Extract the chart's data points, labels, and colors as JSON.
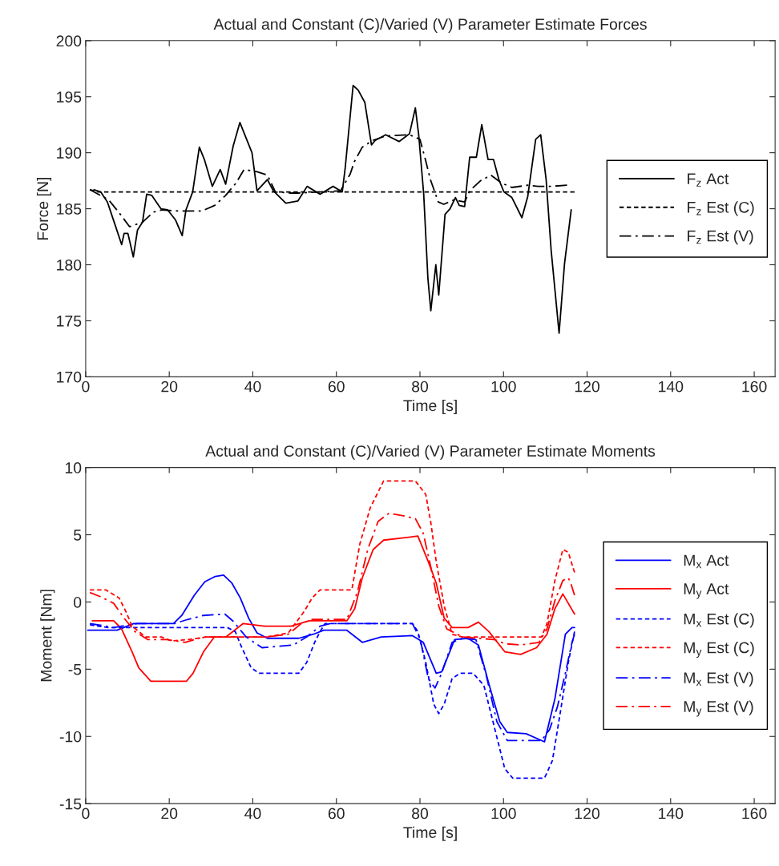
{
  "chart_data": [
    {
      "type": "line",
      "title": "Actual and Constant (C)/Varied (V) Parameter Estimate Forces",
      "xlabel": "Time [s]",
      "ylabel": "Force [N]",
      "xlim": [
        0,
        165
      ],
      "xticks": [
        0,
        20,
        40,
        60,
        80,
        100,
        120,
        140,
        160
      ],
      "ylim": [
        170,
        200
      ],
      "yticks": [
        170,
        175,
        180,
        185,
        190,
        195,
        200
      ],
      "grid": false,
      "legend": "right",
      "series": [
        {
          "name": "F$_{z}$ Act",
          "color": "#000000",
          "line_style": "solid",
          "x": [
            2.0,
            3.6,
            5.2,
            7.0,
            8.6,
            9.2,
            10.1,
            11.4,
            12.4,
            13.6,
            14.6,
            15.8,
            18.0,
            19.6,
            21.5,
            23.1,
            24.0,
            25.6,
            27.2,
            28.4,
            30.3,
            32.2,
            33.5,
            35.3,
            36.9,
            39.8,
            41.0,
            43.5,
            44.9,
            47.9,
            50.8,
            53.0,
            56.1,
            59.2,
            61.4,
            62.1,
            64.0,
            65.2,
            66.8,
            68.4,
            69.3,
            71.8,
            75.0,
            77.5,
            78.9,
            79.7,
            80.9,
            81.9,
            82.6,
            83.8,
            84.5,
            86.0,
            87.2,
            88.5,
            89.4,
            90.7,
            91.9,
            93.5,
            94.8,
            96.3,
            97.6,
            98.9,
            100.1,
            102.0,
            104.4,
            105.8,
            107.7,
            108.9,
            110.2,
            111.4,
            113.3,
            114.6,
            116.2
          ],
          "values": [
            186.7,
            186.5,
            185.6,
            183.6,
            181.8,
            182.8,
            182.8,
            180.7,
            183.1,
            183.8,
            186.3,
            186.2,
            185.0,
            184.9,
            184.0,
            182.6,
            184.9,
            186.5,
            190.5,
            189.4,
            187.0,
            188.5,
            187.2,
            190.6,
            192.7,
            190.0,
            186.6,
            187.6,
            186.6,
            185.5,
            185.7,
            187.0,
            186.3,
            187.0,
            186.5,
            188.6,
            196.0,
            195.6,
            194.5,
            190.7,
            191.1,
            191.6,
            191.0,
            191.7,
            194.0,
            191.6,
            186.3,
            178.8,
            175.9,
            180.0,
            177.3,
            184.5,
            185.0,
            186.0,
            185.3,
            185.2,
            189.6,
            189.6,
            192.5,
            189.4,
            189.4,
            187.6,
            186.5,
            186.0,
            184.2,
            186.1,
            191.2,
            191.6,
            187.6,
            181.3,
            173.9,
            180.1,
            184.9
          ]
        },
        {
          "name": "F$_{z}$ Est (C)",
          "color": "#000000",
          "line_style": "dotted",
          "x": [
            1.0,
            3.0,
            60.0,
            117.0
          ],
          "values": [
            186.7,
            186.5,
            186.5,
            186.5
          ]
        },
        {
          "name": "F$_{z}$ Est (V)",
          "color": "#000000",
          "line_style": "dashdot",
          "x": [
            1.0,
            5.5,
            8.3,
            10.5,
            13.6,
            16.2,
            18.3,
            22.1,
            27.8,
            30.9,
            33.5,
            36.0,
            37.9,
            41.0,
            43.5,
            45.4,
            49.2,
            51.0,
            56.0,
            61.0,
            63.3,
            64.3,
            66.2,
            68.7,
            71.8,
            77.5,
            80.0,
            81.3,
            82.5,
            84.4,
            85.7,
            88.2,
            90.7,
            91.9,
            94.5,
            97.0,
            99.5,
            102.0,
            105.8,
            108.3,
            111.4,
            115.2
          ],
          "values": [
            186.7,
            185.8,
            184.5,
            183.4,
            183.8,
            184.7,
            184.9,
            184.8,
            184.8,
            185.3,
            186.2,
            187.3,
            188.5,
            188.3,
            188.0,
            186.5,
            186.4,
            186.4,
            186.5,
            186.6,
            188.1,
            189.2,
            190.5,
            191.1,
            191.5,
            191.6,
            191.2,
            189.4,
            187.6,
            185.6,
            185.4,
            185.8,
            185.6,
            186.6,
            187.5,
            188.0,
            187.3,
            186.9,
            187.1,
            187.0,
            187.0,
            187.1
          ]
        }
      ]
    },
    {
      "type": "line",
      "title": "Actual and Constant (C)/Varied (V) Parameter Estimate Moments",
      "xlabel": "Time [s]",
      "ylabel": "Moment [Nm]",
      "xlim": [
        0,
        165
      ],
      "xticks": [
        0,
        20,
        40,
        60,
        80,
        100,
        120,
        140,
        160
      ],
      "ylim": [
        -15,
        10
      ],
      "yticks": [
        -15,
        -10,
        -5,
        0,
        5,
        10
      ],
      "grid": false,
      "legend": "right",
      "series": [
        {
          "name": "M$_{x}$ Act",
          "color": "#0000ff",
          "line_style": "solid",
          "x": [
            0.5,
            7.5,
            11.5,
            21.0,
            23.0,
            26.0,
            28.5,
            31.0,
            33.0,
            35.0,
            37.0,
            39.0,
            41.0,
            43.5,
            51.0,
            54.5,
            57.0,
            62.5,
            66.2,
            70.7,
            78.2,
            80.8,
            83.9,
            85.2,
            88.3,
            91.5,
            94.0,
            96.5,
            99.1,
            100.9,
            105.4,
            109.8,
            112.3,
            114.8,
            116.4,
            117.0
          ],
          "values": [
            -2.1,
            -2.1,
            -1.6,
            -1.6,
            -1.0,
            0.5,
            1.5,
            1.9,
            2.0,
            1.4,
            0.3,
            -1.2,
            -2.3,
            -2.7,
            -2.7,
            -2.4,
            -2.1,
            -2.1,
            -3.0,
            -2.6,
            -2.5,
            -3.0,
            -5.3,
            -5.2,
            -2.8,
            -2.7,
            -3.2,
            -6.1,
            -8.9,
            -9.7,
            -9.8,
            -10.4,
            -7.2,
            -2.4,
            -1.9,
            -1.9
          ]
        },
        {
          "name": "M$_{y}$ Act",
          "color": "#ff0000",
          "line_style": "solid",
          "x": [
            1.6,
            6.7,
            8.6,
            11.1,
            12.7,
            15.6,
            24.1,
            25.7,
            28.2,
            30.8,
            33.6,
            37.7,
            42.8,
            49.1,
            53.5,
            62.5,
            64.4,
            66.2,
            68.8,
            71.3,
            79.5,
            82.0,
            83.9,
            85.8,
            87.7,
            91.5,
            94.0,
            96.5,
            100.3,
            104.1,
            107.9,
            110.4,
            112.3,
            114.2,
            117.0
          ],
          "values": [
            -1.4,
            -1.4,
            -2.0,
            -3.7,
            -4.9,
            -5.9,
            -5.9,
            -5.3,
            -3.7,
            -2.6,
            -2.6,
            -1.6,
            -1.8,
            -1.8,
            -1.4,
            -1.4,
            -0.5,
            1.8,
            3.9,
            4.6,
            4.9,
            3.0,
            1.4,
            -1.2,
            -1.9,
            -1.9,
            -1.5,
            -2.2,
            -3.7,
            -3.9,
            -3.4,
            -2.4,
            -0.5,
            0.6,
            -0.9
          ]
        },
        {
          "name": "M$_{x}$ Est (C)",
          "color": "#0000ff",
          "line_style": "dotted",
          "x": [
            1.0,
            5.4,
            20.0,
            25.7,
            33.9,
            35.8,
            37.1,
            39.6,
            41.5,
            51.0,
            52.9,
            54.8,
            56.1,
            57.3,
            78.2,
            79.5,
            81.4,
            83.3,
            84.5,
            85.8,
            87.7,
            89.6,
            92.7,
            95.3,
            97.8,
            100.3,
            102.2,
            109.8,
            111.7,
            113.6,
            115.5,
            117.0
          ],
          "values": [
            -1.7,
            -1.9,
            -1.9,
            -1.9,
            -1.9,
            -2.2,
            -3.2,
            -4.9,
            -5.3,
            -5.3,
            -4.5,
            -3.0,
            -2.2,
            -1.6,
            -1.6,
            -2.2,
            -4.5,
            -7.6,
            -8.3,
            -7.6,
            -5.7,
            -5.3,
            -5.3,
            -6.2,
            -9.3,
            -12.4,
            -13.1,
            -13.1,
            -11.8,
            -8.2,
            -4.5,
            -2.2
          ]
        },
        {
          "name": "M$_{y}$ Est (C)",
          "color": "#ff0000",
          "line_style": "dotted",
          "x": [
            1.0,
            4.8,
            8.0,
            9.6,
            11.1,
            14.3,
            18.1,
            20.6,
            24.4,
            28.9,
            43.4,
            48.5,
            52.3,
            54.2,
            56.1,
            63.7,
            65.6,
            68.1,
            71.3,
            78.9,
            81.4,
            82.6,
            83.9,
            85.8,
            87.7,
            90.2,
            109.1,
            110.4,
            112.3,
            114.2,
            115.5,
            117.0
          ],
          "values": [
            0.9,
            0.9,
            0.3,
            -0.7,
            -1.8,
            -2.6,
            -2.6,
            -2.9,
            -2.8,
            -2.6,
            -2.6,
            -2.3,
            -0.7,
            0.3,
            0.9,
            0.9,
            4.3,
            7.0,
            9.0,
            9.0,
            8.0,
            5.9,
            3.0,
            -0.3,
            -2.4,
            -2.6,
            -2.6,
            -1.6,
            1.6,
            3.9,
            3.7,
            2.2
          ]
        },
        {
          "name": "M$_{x}$ Est (V)",
          "color": "#0000ff",
          "line_style": "dashdot",
          "x": [
            1.0,
            6.7,
            12.4,
            21.3,
            24.4,
            28.2,
            33.3,
            35.2,
            38.4,
            42.2,
            49.7,
            52.9,
            56.1,
            58.6,
            78.2,
            80.1,
            82.0,
            83.6,
            85.2,
            87.7,
            90.2,
            93.4,
            95.9,
            98.4,
            100.9,
            109.1,
            111.0,
            112.9,
            114.8,
            116.4,
            117.0
          ],
          "values": [
            -1.6,
            -1.9,
            -1.6,
            -1.6,
            -1.3,
            -1.0,
            -0.9,
            -1.4,
            -2.6,
            -3.4,
            -3.2,
            -2.6,
            -1.8,
            -1.6,
            -1.6,
            -2.8,
            -5.7,
            -6.4,
            -5.3,
            -3.0,
            -2.7,
            -2.8,
            -5.5,
            -8.9,
            -10.3,
            -10.3,
            -9.5,
            -7.8,
            -5.3,
            -3.0,
            -2.4
          ]
        },
        {
          "name": "M$_{y}$ Est (V)",
          "color": "#ff0000",
          "line_style": "dashdot",
          "x": [
            1.0,
            3.5,
            6.7,
            9.2,
            11.8,
            14.9,
            19.4,
            23.8,
            28.2,
            43.4,
            48.5,
            51.6,
            54.2,
            62.5,
            65.0,
            67.5,
            70.0,
            72.6,
            76.3,
            78.9,
            80.8,
            82.6,
            84.5,
            86.4,
            90.2,
            97.8,
            100.3,
            104.1,
            108.5,
            110.4,
            112.3,
            114.2,
            115.5,
            116.1,
            117.0
          ],
          "values": [
            0.7,
            0.4,
            -0.1,
            -1.2,
            -2.2,
            -2.8,
            -2.8,
            -3.0,
            -2.6,
            -2.6,
            -2.4,
            -1.6,
            -1.3,
            -1.3,
            0.7,
            3.9,
            6.0,
            6.6,
            6.4,
            6.2,
            5.1,
            2.6,
            -0.3,
            -2.0,
            -2.6,
            -2.8,
            -3.1,
            -3.2,
            -3.0,
            -2.0,
            0.1,
            1.6,
            1.8,
            1.4,
            0.5
          ]
        }
      ]
    }
  ]
}
